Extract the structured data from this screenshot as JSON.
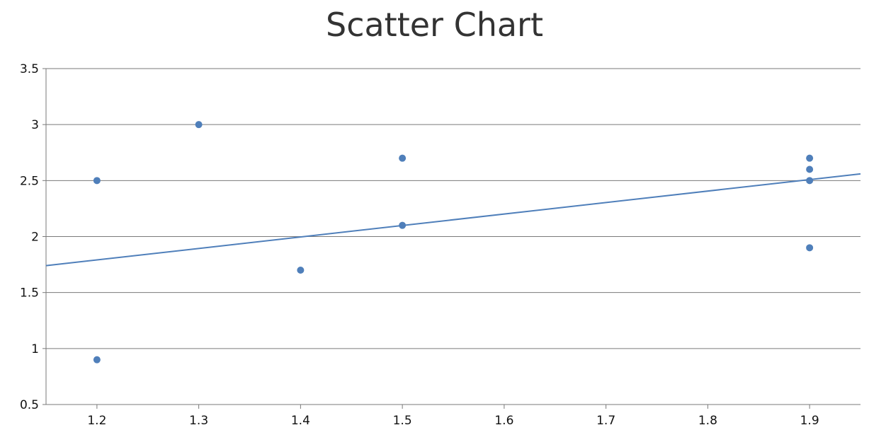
{
  "chart_data": {
    "type": "scatter",
    "title": "Scatter Chart",
    "xlabel": "",
    "ylabel": "",
    "xlim": [
      1.15,
      1.95
    ],
    "ylim": [
      0.5,
      3.5
    ],
    "x_ticks": [
      "1.2",
      "1.3",
      "1.4",
      "1.5",
      "1.6",
      "1.7",
      "1.8",
      "1.9"
    ],
    "y_ticks": [
      "0.5",
      "1",
      "1.5",
      "2",
      "2.5",
      "3",
      "3.5"
    ],
    "grid": true,
    "legend": "none",
    "series": [
      {
        "x": [
          1.2,
          1.2,
          1.3,
          1.4,
          1.5,
          1.5,
          1.9,
          1.9,
          1.9,
          1.9
        ],
        "y": [
          2.5,
          0.9,
          3.0,
          1.7,
          2.7,
          2.1,
          2.7,
          2.6,
          2.5,
          1.9
        ],
        "color": "#4f7fba"
      }
    ],
    "trendline": {
      "type": "linear",
      "x": [
        1.15,
        1.95
      ],
      "y": [
        1.74,
        2.56
      ],
      "color": "#4f7fba"
    }
  }
}
